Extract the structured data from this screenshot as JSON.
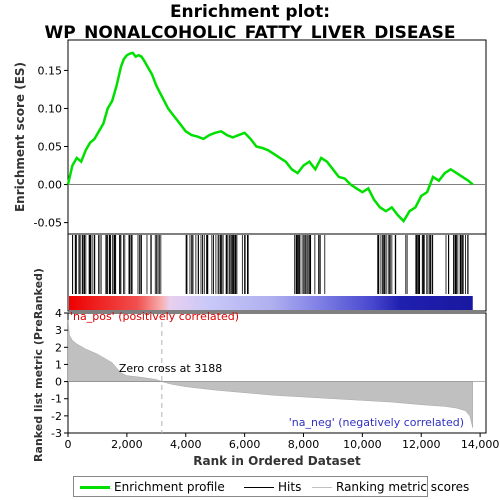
{
  "title_lines": [
    "Enrichment plot:",
    "WP_NONALCOHOLIC_FATTY_LIVER_DISEASE"
  ],
  "legend": {
    "items": [
      {
        "label": "Enrichment profile",
        "color": "#00e000"
      },
      {
        "label": "Hits",
        "color": "#000000"
      },
      {
        "label": "Ranking metric scores",
        "color": "#c0c0c0"
      }
    ]
  },
  "chart_data": [
    {
      "type": "line",
      "panel": "enrichment",
      "ylabel": "Enrichment score (ES)",
      "ylim": [
        -0.065,
        0.19
      ],
      "xlim": [
        0,
        13750
      ],
      "yticks": [
        -0.05,
        0.0,
        0.05,
        0.1,
        0.15
      ],
      "ytick_labels": [
        "-0.05",
        "0.00",
        "0.05",
        "0.10",
        "0.15"
      ],
      "color": "#00e000",
      "x": [
        0,
        150,
        300,
        450,
        600,
        750,
        900,
        1050,
        1200,
        1350,
        1500,
        1650,
        1800,
        1900,
        2000,
        2100,
        2200,
        2300,
        2400,
        2500,
        2600,
        2700,
        2850,
        3000,
        3200,
        3400,
        3600,
        3800,
        4000,
        4200,
        4400,
        4600,
        4800,
        5000,
        5200,
        5400,
        5600,
        5800,
        6000,
        6200,
        6400,
        6600,
        6800,
        7000,
        7200,
        7400,
        7600,
        7800,
        8000,
        8200,
        8400,
        8600,
        8800,
        9000,
        9200,
        9400,
        9600,
        9800,
        10000,
        10200,
        10400,
        10600,
        10800,
        11000,
        11200,
        11400,
        11600,
        11800,
        12000,
        12200,
        12400,
        12600,
        12800,
        13000,
        13200,
        13400,
        13600,
        13750
      ],
      "y": [
        0.0,
        0.025,
        0.035,
        0.03,
        0.045,
        0.055,
        0.06,
        0.07,
        0.08,
        0.1,
        0.11,
        0.13,
        0.155,
        0.165,
        0.17,
        0.172,
        0.173,
        0.168,
        0.17,
        0.168,
        0.162,
        0.155,
        0.145,
        0.13,
        0.115,
        0.1,
        0.09,
        0.08,
        0.07,
        0.065,
        0.063,
        0.06,
        0.065,
        0.068,
        0.07,
        0.065,
        0.062,
        0.065,
        0.068,
        0.06,
        0.05,
        0.048,
        0.045,
        0.04,
        0.035,
        0.03,
        0.02,
        0.015,
        0.025,
        0.03,
        0.02,
        0.035,
        0.03,
        0.02,
        0.01,
        0.008,
        0.0,
        -0.005,
        -0.01,
        -0.005,
        -0.02,
        -0.03,
        -0.035,
        -0.03,
        -0.04,
        -0.048,
        -0.035,
        -0.03,
        -0.015,
        -0.01,
        0.01,
        0.005,
        0.015,
        0.02,
        0.015,
        0.01,
        0.005,
        0.0
      ]
    },
    {
      "type": "scatter",
      "panel": "hits",
      "hit_density_ranges": [
        [
          0,
          3200
        ],
        [
          4000,
          5600
        ],
        [
          5600,
          6200
        ],
        [
          7700,
          8800
        ],
        [
          10500,
          11200
        ],
        [
          11400,
          12400
        ],
        [
          12800,
          13600
        ]
      ]
    },
    {
      "type": "area",
      "panel": "ranking_metric",
      "ylabel": "Ranked list metric (PreRanked)",
      "xlabel": "Rank in Ordered Dataset",
      "ylim": [
        -3,
        4
      ],
      "xlim": [
        0,
        13750
      ],
      "yticks": [
        -3,
        -2,
        -1,
        0,
        1,
        2,
        3,
        4
      ],
      "ytick_labels": [
        "-3",
        "-2",
        "-1",
        "0",
        "1",
        "2",
        "3",
        "4"
      ],
      "xticks": [
        0,
        2000,
        4000,
        6000,
        8000,
        10000,
        12000,
        14000
      ],
      "xtick_labels": [
        "0",
        "2,000",
        "4,000",
        "6,000",
        "8,000",
        "10,000",
        "12,000",
        "14,000"
      ],
      "x": [
        0,
        50,
        150,
        300,
        600,
        1000,
        1500,
        1800,
        2000,
        2500,
        3000,
        3188,
        3500,
        4000,
        5000,
        6000,
        7000,
        8000,
        9000,
        10000,
        11000,
        12000,
        12800,
        13200,
        13500,
        13650,
        13750
      ],
      "y": [
        3.6,
        2.7,
        2.4,
        2.2,
        1.9,
        1.6,
        1.1,
        0.5,
        0.35,
        0.25,
        0.12,
        0.0,
        -0.15,
        -0.3,
        -0.5,
        -0.65,
        -0.8,
        -0.9,
        -1.0,
        -1.1,
        -1.2,
        -1.35,
        -1.45,
        -1.55,
        -1.7,
        -2.0,
        -2.7
      ],
      "zero_cross_label": "Zero cross at 3188",
      "zero_cross_x": 3188,
      "pos_label": "'na_pos' (positively correlated)",
      "neg_label": "'na_neg' (negatively correlated)"
    }
  ]
}
